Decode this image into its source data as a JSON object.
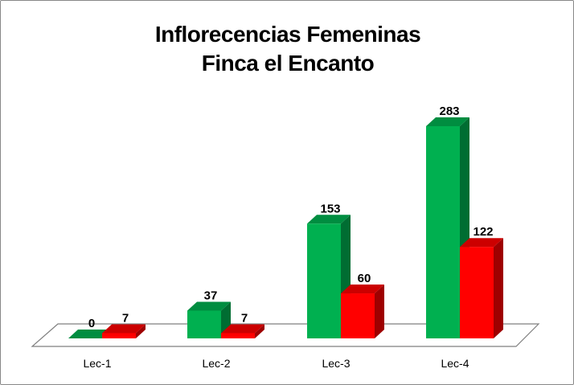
{
  "chart_data": {
    "type": "bar",
    "title_line1": "Inflorecencias Femeninas",
    "title_line2": "Finca el Encanto",
    "categories": [
      "Lec-1",
      "Lec-2",
      "Lec-3",
      "Lec-4"
    ],
    "series": [
      {
        "values": [
          0,
          37,
          153,
          283
        ],
        "color": "#00B050"
      },
      {
        "values": [
          7,
          7,
          60,
          122
        ],
        "color": "#FF0000"
      }
    ],
    "xlabel": "",
    "ylabel": "",
    "ylim": [
      0,
      283
    ],
    "grid": false,
    "legend": "none",
    "style": "3d-clustered-column"
  }
}
